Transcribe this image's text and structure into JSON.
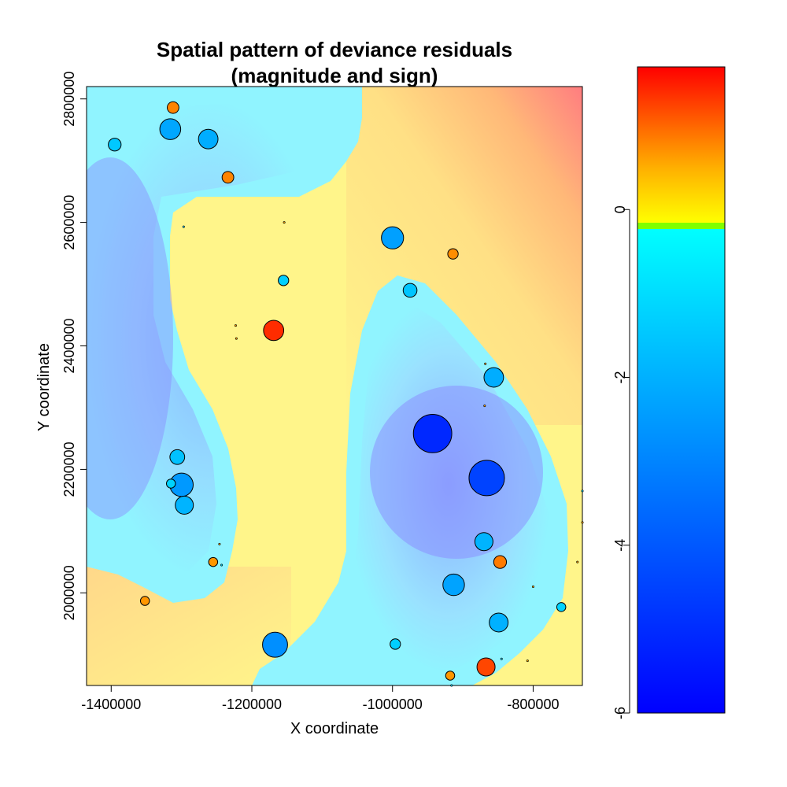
{
  "chart_data": {
    "type": "scatter",
    "title_line1": "Spatial pattern of  deviance residuals",
    "title_line2": "(magnitude and sign)",
    "xlabel": "X coordinate",
    "ylabel": "Y coordinate",
    "xlim": [
      -1435000,
      -730000
    ],
    "ylim": [
      1850000,
      2820000
    ],
    "x_ticks": [
      -1400000,
      -1200000,
      -1000000,
      -800000
    ],
    "x_tick_labels": [
      "-1400000",
      "-1200000",
      "-1000000",
      "-800000"
    ],
    "y_ticks": [
      2000000,
      2200000,
      2400000,
      2600000,
      2800000
    ],
    "y_tick_labels": [
      "2000000",
      "2200000",
      "2400000",
      "2600000",
      "2800000"
    ],
    "colorbar": {
      "range": [
        -6,
        1.7
      ],
      "ticks": [
        0,
        -2,
        -4,
        -6
      ],
      "tick_labels": [
        "0",
        "-2",
        "-4",
        "-6"
      ],
      "colors_negative": [
        "#0000ff",
        "#00ffff"
      ],
      "colors_positive": [
        "#ffff00",
        "#ff0000"
      ],
      "zero_band_color": "#80ff00"
    },
    "background_colors": {
      "positive": "#fff58a",
      "slightly_negative": "#8ff0ff",
      "more_negative": "#8c8cff",
      "upper_right": "#ff8080"
    },
    "points": [
      {
        "x": -1316000,
        "y": 2751000,
        "r": -1.6
      },
      {
        "x": -1262000,
        "y": 2735000,
        "r": -1.4
      },
      {
        "x": -1395000,
        "y": 2726000,
        "r": -0.6
      },
      {
        "x": -1312000,
        "y": 2786000,
        "r": 0.5
      },
      {
        "x": -1234000,
        "y": 2673000,
        "r": 0.5
      },
      {
        "x": -1000000,
        "y": 2575000,
        "r": -1.8
      },
      {
        "x": -914000,
        "y": 2549000,
        "r": 0.4
      },
      {
        "x": -1155000,
        "y": 2506000,
        "r": -0.4
      },
      {
        "x": -975000,
        "y": 2490000,
        "r": -0.7
      },
      {
        "x": -1169000,
        "y": 2425000,
        "r": 1.5
      },
      {
        "x": -1223000,
        "y": 2433000,
        "r": 0.2
      },
      {
        "x": -1222000,
        "y": 2412000,
        "r": 0.2
      },
      {
        "x": -1297000,
        "y": 2593000,
        "r": -0.2
      },
      {
        "x": -1154000,
        "y": 2600000,
        "r": 0.1
      },
      {
        "x": -856000,
        "y": 2349000,
        "r": -1.4
      },
      {
        "x": -868000,
        "y": 2371000,
        "r": 0.15
      },
      {
        "x": -869000,
        "y": 2303000,
        "r": 0.2
      },
      {
        "x": -943000,
        "y": 2258000,
        "r": -5.4
      },
      {
        "x": -866000,
        "y": 2186000,
        "r": -4.6
      },
      {
        "x": -1300000,
        "y": 2175000,
        "r": -2.0
      },
      {
        "x": -1306000,
        "y": 2220000,
        "r": -0.8
      },
      {
        "x": -1296000,
        "y": 2142000,
        "r": -1.2
      },
      {
        "x": -1315000,
        "y": 2177000,
        "r": -0.3
      },
      {
        "x": -870000,
        "y": 2083000,
        "r": -1.2
      },
      {
        "x": -847000,
        "y": 2050000,
        "r": 0.6
      },
      {
        "x": -1255000,
        "y": 2050000,
        "r": 0.3
      },
      {
        "x": -1246000,
        "y": 2079000,
        "r": 0.15
      },
      {
        "x": -1243000,
        "y": 2045000,
        "r": -0.1
      },
      {
        "x": -913000,
        "y": 2013000,
        "r": -1.7
      },
      {
        "x": -849000,
        "y": 1952000,
        "r": -1.3
      },
      {
        "x": -1352000,
        "y": 1987000,
        "r": 0.3
      },
      {
        "x": -1167000,
        "y": 1916000,
        "r": -2.3
      },
      {
        "x": -996000,
        "y": 1917000,
        "r": -0.4
      },
      {
        "x": -867000,
        "y": 1880000,
        "r": 1.2
      },
      {
        "x": -918000,
        "y": 1866000,
        "r": 0.3
      },
      {
        "x": -916000,
        "y": 1850000,
        "r": -0.1
      },
      {
        "x": -737000,
        "y": 2050000,
        "r": 0.15
      },
      {
        "x": -730000,
        "y": 2114000,
        "r": 0.15
      },
      {
        "x": -730000,
        "y": 2165000,
        "r": -0.2
      },
      {
        "x": -800000,
        "y": 2010000,
        "r": 0.1
      },
      {
        "x": -760000,
        "y": 1977000,
        "r": -0.3
      },
      {
        "x": -845000,
        "y": 1893000,
        "r": -0.1
      },
      {
        "x": -808000,
        "y": 1890000,
        "r": 0.05
      }
    ]
  }
}
